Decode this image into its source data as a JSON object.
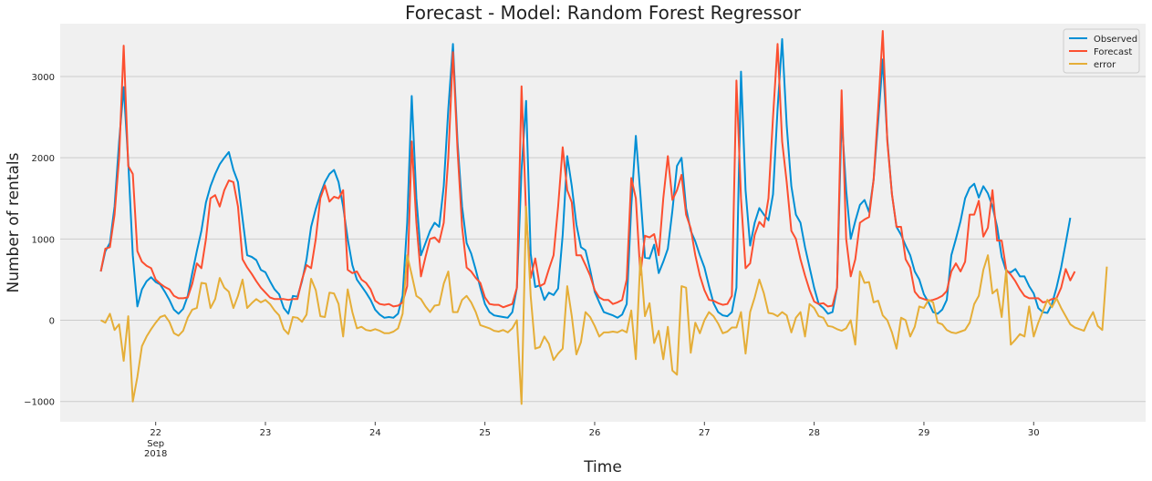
{
  "chart_data": {
    "type": "line",
    "title": "Forecast - Model: Random Forest Regressor",
    "xlabel": "Time",
    "ylabel": "Number of rentals",
    "ylim": [
      -1250,
      3650
    ],
    "yticks": [
      -1000,
      0,
      1000,
      2000,
      3000
    ],
    "ytick_labels": [
      "−1000",
      "0",
      "1000",
      "2000",
      "3000"
    ],
    "xticks": [
      {
        "pos": 22,
        "label": "22",
        "sub": [
          "Sep",
          "2018"
        ]
      },
      {
        "pos": 23,
        "label": "23"
      },
      {
        "pos": 24,
        "label": "24"
      },
      {
        "pos": 25,
        "label": "25"
      },
      {
        "pos": 26,
        "label": "26"
      },
      {
        "pos": 27,
        "label": "27"
      },
      {
        "pos": 28,
        "label": "28"
      },
      {
        "pos": 29,
        "label": "29"
      },
      {
        "pos": 30,
        "label": "30"
      }
    ],
    "xlim": [
      21.13,
      31.02
    ],
    "x_start": 21.5,
    "x_step": 0.0416667,
    "grid": true,
    "legend_position": "top-right",
    "series": [
      {
        "name": "Observed",
        "color": "#008fd5",
        "values": [
          600,
          850,
          950,
          1400,
          2200,
          2870,
          1950,
          800,
          170,
          380,
          480,
          530,
          470,
          440,
          350,
          250,
          130,
          80,
          140,
          300,
          580,
          850,
          1100,
          1450,
          1650,
          1800,
          1920,
          2000,
          2070,
          1850,
          1700,
          1250,
          800,
          780,
          740,
          620,
          590,
          480,
          380,
          320,
          150,
          80,
          300,
          290,
          480,
          750,
          1150,
          1370,
          1550,
          1700,
          1800,
          1850,
          1700,
          1400,
          1000,
          680,
          500,
          420,
          340,
          250,
          130,
          70,
          30,
          40,
          30,
          80,
          300,
          1200,
          2760,
          1500,
          800,
          950,
          1100,
          1200,
          1150,
          1650,
          2600,
          3400,
          2200,
          1400,
          950,
          820,
          620,
          400,
          200,
          100,
          60,
          50,
          40,
          30,
          100,
          400,
          1850,
          2700,
          820,
          410,
          430,
          250,
          340,
          310,
          390,
          1050,
          2020,
          1650,
          1180,
          900,
          860,
          620,
          350,
          220,
          100,
          80,
          60,
          30,
          70,
          200,
          1400,
          2270,
          1550,
          770,
          760,
          930,
          580,
          720,
          880,
          1350,
          1900,
          2000,
          1380,
          1100,
          970,
          800,
          650,
          420,
          210,
          100,
          60,
          50,
          100,
          400,
          3060,
          1600,
          920,
          1200,
          1380,
          1300,
          1230,
          1550,
          2600,
          3460,
          2400,
          1650,
          1300,
          1200,
          900,
          650,
          400,
          200,
          150,
          80,
          100,
          400,
          2500,
          1600,
          1000,
          1220,
          1420,
          1480,
          1330,
          1730,
          2450,
          3210,
          2230,
          1550,
          1150,
          1050,
          920,
          800,
          600,
          500,
          320,
          220,
          100,
          80,
          130,
          250,
          800,
          1000,
          1220,
          1500,
          1630,
          1680,
          1510,
          1650,
          1560,
          1400,
          1150,
          780,
          600,
          590,
          630,
          540,
          540,
          420,
          330,
          150,
          100,
          90,
          200,
          400,
          650,
          950,
          1260
        ]
      },
      {
        "name": "Forecast",
        "color": "#fc4f30",
        "values": [
          600,
          880,
          900,
          1300,
          2000,
          3380,
          1900,
          1800,
          850,
          720,
          670,
          640,
          500,
          450,
          410,
          380,
          300,
          270,
          270,
          280,
          450,
          700,
          640,
          1000,
          1500,
          1540,
          1400,
          1600,
          1720,
          1700,
          1400,
          750,
          650,
          570,
          480,
          400,
          340,
          280,
          260,
          260,
          260,
          250,
          260,
          260,
          500,
          680,
          640,
          1000,
          1500,
          1660,
          1460,
          1520,
          1500,
          1600,
          620,
          580,
          600,
          500,
          460,
          380,
          240,
          200,
          190,
          200,
          170,
          180,
          220,
          420,
          2200,
          1200,
          540,
          780,
          1000,
          1020,
          960,
          1200,
          2000,
          3300,
          2100,
          1150,
          650,
          600,
          520,
          460,
          280,
          200,
          190,
          190,
          160,
          180,
          200,
          400,
          2880,
          1300,
          520,
          760,
          420,
          450,
          630,
          800,
          1400,
          2130,
          1600,
          1450,
          800,
          800,
          680,
          550,
          370,
          280,
          250,
          250,
          200,
          220,
          250,
          500,
          1750,
          1500,
          560,
          1040,
          1020,
          1060,
          800,
          1500,
          2020,
          1480,
          1600,
          1790,
          1300,
          1130,
          800,
          550,
          370,
          250,
          240,
          210,
          190,
          200,
          300,
          2950,
          1500,
          640,
          700,
          1050,
          1210,
          1150,
          1500,
          2500,
          3400,
          2200,
          1700,
          1100,
          1000,
          750,
          550,
          370,
          230,
          200,
          210,
          170,
          180,
          400,
          2830,
          1000,
          540,
          750,
          1200,
          1240,
          1270,
          1730,
          2600,
          3560,
          2200,
          1550,
          1150,
          1150,
          750,
          650,
          350,
          280,
          260,
          240,
          250,
          270,
          300,
          360,
          600,
          700,
          600,
          720,
          1300,
          1300,
          1470,
          1030,
          1140,
          1600,
          980,
          980,
          620,
          560,
          480,
          380,
          300,
          270,
          270,
          270,
          220,
          230,
          260,
          270,
          400,
          630,
          490,
          600
        ]
      },
      {
        "name": "error",
        "color": "#e5ae38",
        "values": [
          0,
          -30,
          80,
          -120,
          -50,
          -500,
          50,
          -1000,
          -700,
          -320,
          -200,
          -110,
          -30,
          40,
          60,
          -20,
          -160,
          -190,
          -130,
          30,
          130,
          150,
          460,
          450,
          150,
          260,
          520,
          400,
          350,
          150,
          300,
          500,
          150,
          210,
          260,
          220,
          250,
          200,
          120,
          60,
          -110,
          -170,
          40,
          30,
          -20,
          70,
          510,
          370,
          50,
          40,
          340,
          330,
          200,
          -200,
          380,
          100,
          -100,
          -80,
          -120,
          -130,
          -110,
          -130,
          -160,
          -160,
          -140,
          -100,
          80,
          800,
          560,
          300,
          260,
          170,
          100,
          180,
          190,
          450,
          600,
          100,
          100,
          250,
          300,
          220,
          100,
          -60,
          -80,
          -100,
          -130,
          -140,
          -120,
          -150,
          -100,
          0,
          -1030,
          1400,
          300,
          -350,
          -330,
          -200,
          -290,
          -490,
          -410,
          -350,
          420,
          50,
          -420,
          -270,
          100,
          40,
          -70,
          -200,
          -150,
          -150,
          -140,
          -150,
          -120,
          -150,
          120,
          -480,
          770,
          50,
          210,
          -280,
          -130,
          -480,
          -80,
          -620,
          -670,
          420,
          400,
          -400,
          -30,
          -160,
          0,
          100,
          50,
          -40,
          -160,
          -140,
          -90,
          -90,
          100,
          -410,
          100,
          280,
          500,
          330,
          90,
          80,
          50,
          100,
          60,
          -150,
          30,
          100,
          -200,
          200,
          150,
          50,
          30,
          -70,
          -80,
          -110,
          -130,
          -100,
          0,
          -300,
          600,
          460,
          470,
          220,
          240,
          60,
          0,
          -150,
          -350,
          30,
          0,
          -200,
          -80,
          170,
          150,
          250,
          220,
          -30,
          -50,
          -120,
          -150,
          -160,
          -140,
          -120,
          -30,
          200,
          300,
          620,
          800,
          330,
          380,
          40,
          620,
          -300,
          -240,
          -170,
          -200,
          170,
          -200,
          -30,
          110,
          250,
          160,
          270,
          150,
          50,
          -50,
          -90,
          -110,
          -130,
          0,
          100,
          -70,
          -120,
          660
        ]
      }
    ]
  }
}
